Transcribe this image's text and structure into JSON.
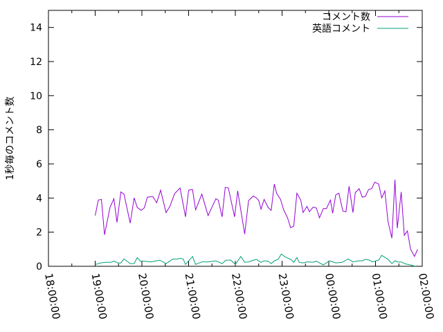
{
  "chart_data": {
    "type": "line",
    "title": "",
    "xlabel": "",
    "ylabel": "1秒毎のコメント数",
    "xlim": [
      "18:00:00",
      "02:00:00"
    ],
    "ylim": [
      0,
      15
    ],
    "x_tick_labels": [
      "18:00:00",
      "19:00:00",
      "20:00:00",
      "21:00:00",
      "22:00:00",
      "23:00:00",
      "00:00:00",
      "01:00:00",
      "02:00:00"
    ],
    "y_ticks": [
      0,
      2,
      4,
      6,
      8,
      10,
      12,
      14
    ],
    "y_tick_labels": [
      "0",
      "2",
      "4",
      "6",
      "8",
      "10",
      "12",
      "14"
    ],
    "grid": false,
    "legend_position": "top-right",
    "series": [
      {
        "name": "コメント数",
        "color": "#9400d3",
        "points": [
          [
            "19:00",
            2.97
          ],
          [
            "19:04",
            3.88
          ],
          [
            "19:08",
            3.92
          ],
          [
            "19:12",
            1.85
          ],
          [
            "19:19",
            3.45
          ],
          [
            "19:24",
            3.96
          ],
          [
            "19:28",
            2.57
          ],
          [
            "19:33",
            4.36
          ],
          [
            "19:37",
            4.23
          ],
          [
            "19:45",
            2.53
          ],
          [
            "19:50",
            4.01
          ],
          [
            "19:54",
            3.45
          ],
          [
            "19:59",
            3.28
          ],
          [
            "20:03",
            3.42
          ],
          [
            "20:07",
            4.05
          ],
          [
            "20:14",
            4.09
          ],
          [
            "20:19",
            3.72
          ],
          [
            "20:24",
            4.46
          ],
          [
            "20:31",
            3.15
          ],
          [
            "20:36",
            3.52
          ],
          [
            "20:42",
            4.26
          ],
          [
            "20:49",
            4.59
          ],
          [
            "20:56",
            2.9
          ],
          [
            "21:00",
            4.46
          ],
          [
            "21:05",
            4.5
          ],
          [
            "21:09",
            3.31
          ],
          [
            "21:17",
            4.23
          ],
          [
            "21:25",
            2.97
          ],
          [
            "21:35",
            3.96
          ],
          [
            "21:38",
            3.88
          ],
          [
            "21:43",
            2.9
          ],
          [
            "21:47",
            4.63
          ],
          [
            "21:51",
            4.59
          ],
          [
            "21:59",
            2.9
          ],
          [
            "22:03",
            4.42
          ],
          [
            "22:12",
            1.89
          ],
          [
            "22:17",
            3.85
          ],
          [
            "22:23",
            4.12
          ],
          [
            "22:27",
            4.01
          ],
          [
            "22:30",
            3.85
          ],
          [
            "22:33",
            3.35
          ],
          [
            "22:37",
            3.92
          ],
          [
            "22:42",
            3.45
          ],
          [
            "22:46",
            3.28
          ],
          [
            "22:50",
            4.82
          ],
          [
            "22:53",
            4.28
          ],
          [
            "22:58",
            3.92
          ],
          [
            "23:02",
            3.31
          ],
          [
            "23:07",
            2.84
          ],
          [
            "23:11",
            2.26
          ],
          [
            "23:15",
            2.36
          ],
          [
            "23:19",
            4.28
          ],
          [
            "23:24",
            3.88
          ],
          [
            "23:27",
            3.15
          ],
          [
            "23:32",
            3.51
          ],
          [
            "23:35",
            3.2
          ],
          [
            "23:40",
            3.47
          ],
          [
            "23:44",
            3.42
          ],
          [
            "23:48",
            2.84
          ],
          [
            "23:53",
            3.38
          ],
          [
            "23:57",
            3.38
          ],
          [
            "00:02",
            3.88
          ],
          [
            "00:05",
            3.11
          ],
          [
            "00:09",
            4.19
          ],
          [
            "00:13",
            4.28
          ],
          [
            "00:18",
            3.24
          ],
          [
            "00:22",
            3.2
          ],
          [
            "00:26",
            4.69
          ],
          [
            "00:31",
            3.15
          ],
          [
            "00:34",
            4.32
          ],
          [
            "00:39",
            4.55
          ],
          [
            "00:43",
            4.05
          ],
          [
            "00:47",
            4.1
          ],
          [
            "00:51",
            4.5
          ],
          [
            "00:55",
            4.55
          ],
          [
            "00:59",
            4.93
          ],
          [
            "01:04",
            4.82
          ],
          [
            "01:08",
            4.01
          ],
          [
            "01:12",
            4.42
          ],
          [
            "01:16",
            2.63
          ],
          [
            "01:21",
            1.65
          ],
          [
            "01:25",
            5.07
          ],
          [
            "01:28",
            2.23
          ],
          [
            "01:33",
            4.36
          ],
          [
            "01:37",
            1.82
          ],
          [
            "01:41",
            2.07
          ],
          [
            "01:45",
            1.01
          ],
          [
            "01:50",
            0.58
          ],
          [
            "01:54",
            0.99
          ]
        ]
      },
      {
        "name": "英語コメント",
        "color": "#009e73",
        "points": [
          [
            "19:00",
            0.1
          ],
          [
            "19:07",
            0.2
          ],
          [
            "19:13",
            0.23
          ],
          [
            "19:20",
            0.23
          ],
          [
            "19:24",
            0.3
          ],
          [
            "19:29",
            0.2
          ],
          [
            "19:33",
            0.2
          ],
          [
            "19:37",
            0.43
          ],
          [
            "19:45",
            0.16
          ],
          [
            "19:50",
            0.16
          ],
          [
            "19:54",
            0.51
          ],
          [
            "19:58",
            0.3
          ],
          [
            "20:03",
            0.3
          ],
          [
            "20:11",
            0.26
          ],
          [
            "20:19",
            0.32
          ],
          [
            "20:23",
            0.36
          ],
          [
            "20:31",
            0.16
          ],
          [
            "20:40",
            0.43
          ],
          [
            "20:44",
            0.41
          ],
          [
            "20:49",
            0.47
          ],
          [
            "20:53",
            0.43
          ],
          [
            "20:56",
            0.11
          ],
          [
            "21:05",
            0.57
          ],
          [
            "21:09",
            0.11
          ],
          [
            "21:17",
            0.26
          ],
          [
            "21:25",
            0.26
          ],
          [
            "21:35",
            0.32
          ],
          [
            "21:43",
            0.16
          ],
          [
            "21:48",
            0.36
          ],
          [
            "21:54",
            0.36
          ],
          [
            "22:00",
            0.11
          ],
          [
            "22:07",
            0.57
          ],
          [
            "22:12",
            0.24
          ],
          [
            "22:17",
            0.26
          ],
          [
            "22:23",
            0.35
          ],
          [
            "22:27",
            0.41
          ],
          [
            "22:33",
            0.23
          ],
          [
            "22:37",
            0.32
          ],
          [
            "22:42",
            0.3
          ],
          [
            "22:46",
            0.16
          ],
          [
            "22:50",
            0.32
          ],
          [
            "22:55",
            0.41
          ],
          [
            "22:59",
            0.72
          ],
          [
            "23:04",
            0.55
          ],
          [
            "23:11",
            0.41
          ],
          [
            "23:15",
            0.23
          ],
          [
            "23:19",
            0.51
          ],
          [
            "23:22",
            0.23
          ],
          [
            "23:27",
            0.2
          ],
          [
            "23:32",
            0.26
          ],
          [
            "23:40",
            0.24
          ],
          [
            "23:44",
            0.3
          ],
          [
            "23:53",
            0.08
          ],
          [
            "00:01",
            0.32
          ],
          [
            "00:09",
            0.2
          ],
          [
            "00:17",
            0.23
          ],
          [
            "00:25",
            0.43
          ],
          [
            "00:31",
            0.26
          ],
          [
            "00:39",
            0.32
          ],
          [
            "00:43",
            0.32
          ],
          [
            "00:47",
            0.41
          ],
          [
            "00:52",
            0.36
          ],
          [
            "00:56",
            0.26
          ],
          [
            "01:04",
            0.36
          ],
          [
            "01:08",
            0.64
          ],
          [
            "01:16",
            0.41
          ],
          [
            "01:21",
            0.16
          ],
          [
            "01:25",
            0.32
          ],
          [
            "01:30",
            0.24
          ],
          [
            "01:33",
            0.26
          ],
          [
            "01:38",
            0.14
          ],
          [
            "01:45",
            0.08
          ],
          [
            "01:51",
            0.0
          ]
        ]
      }
    ]
  }
}
